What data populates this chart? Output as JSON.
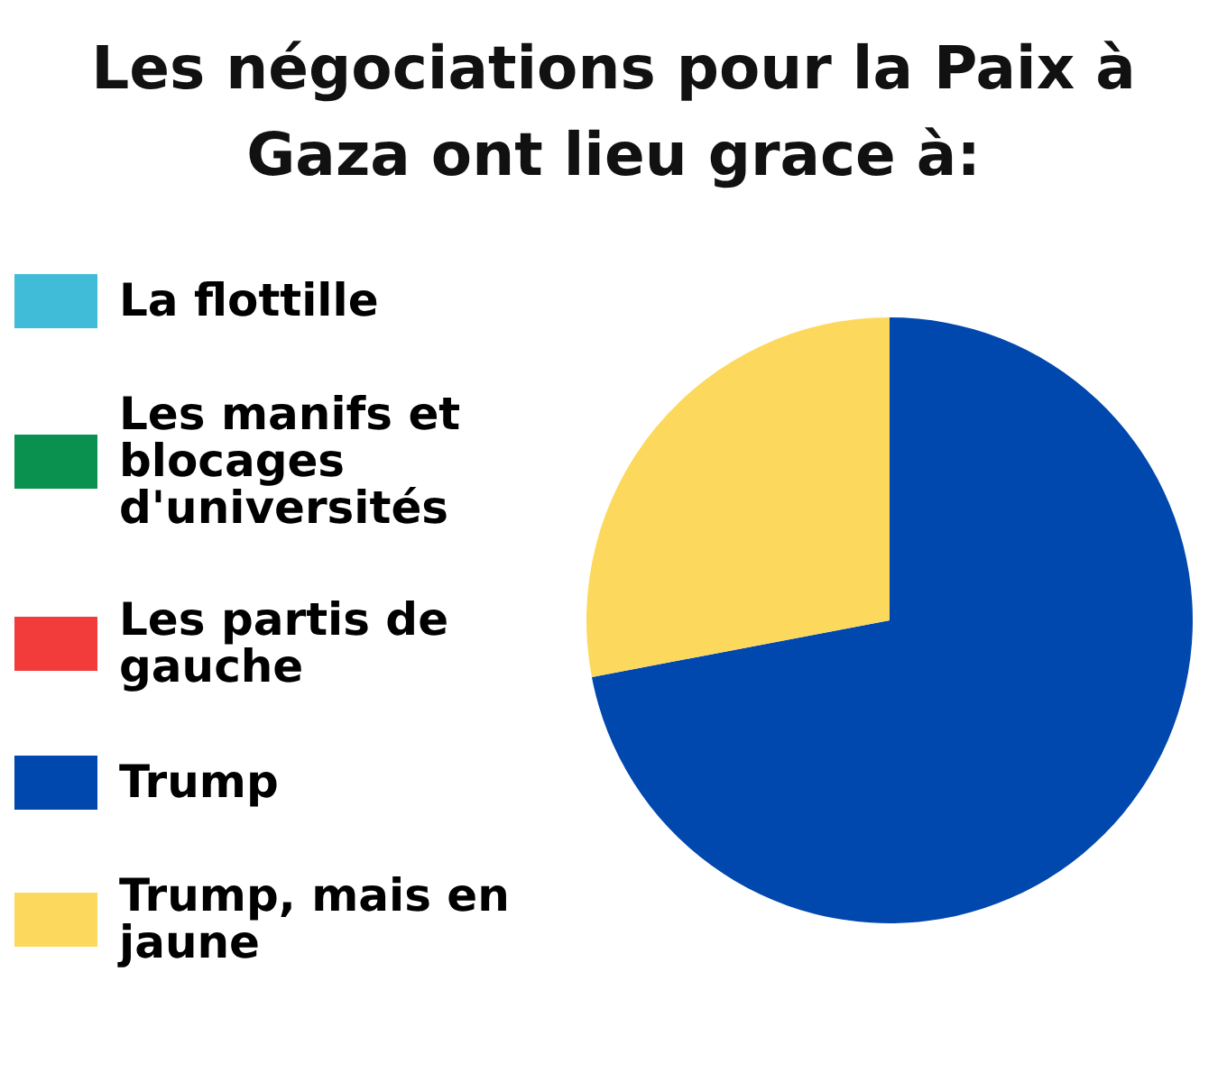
{
  "chart_data": {
    "type": "pie",
    "title": "Les négociations pour la Paix à Gaza ont lieu grace à:",
    "categories": [
      "La flottille",
      "Les manifs et blocages d'universités",
      "Les partis de gauche",
      "Trump",
      "Trump, mais en jaune"
    ],
    "values": [
      0,
      0,
      0,
      72,
      28
    ],
    "colors": [
      "#41bcd8",
      "#0a9150",
      "#f23b3b",
      "#0048ae",
      "#fcd95c"
    ],
    "legend": "left"
  }
}
